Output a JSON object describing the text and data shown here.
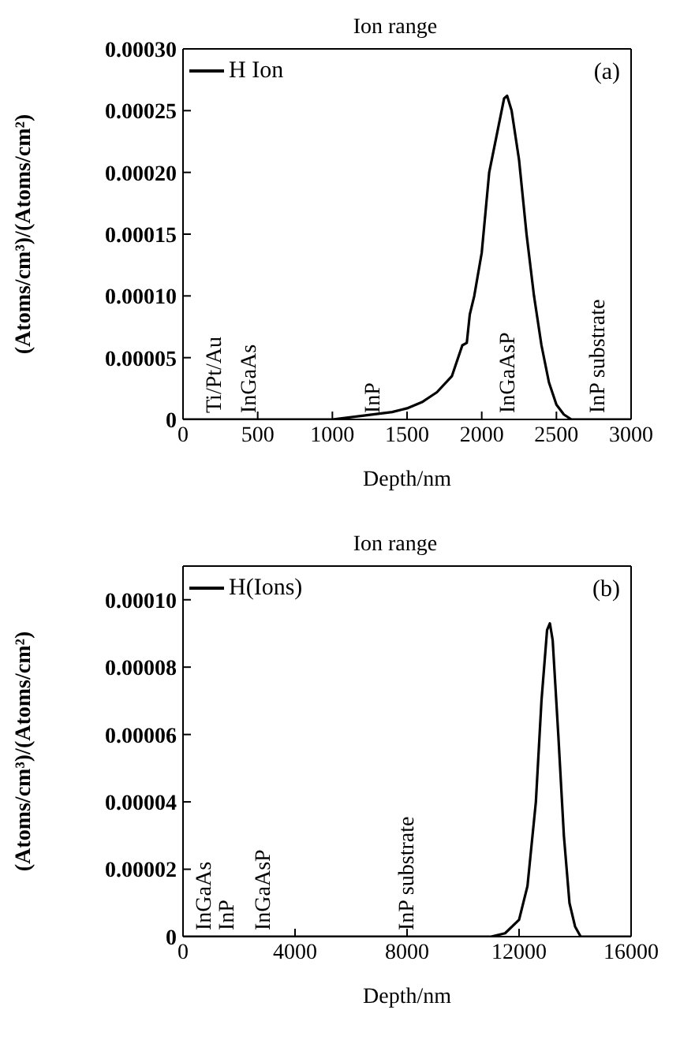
{
  "chart_data": [
    {
      "type": "line",
      "title": "Ion range",
      "xlabel": "Depth/nm",
      "ylabel": "(Atoms/cm³)/(Atoms/cm²)",
      "x": [
        0,
        500,
        1000,
        1200,
        1400,
        1500,
        1600,
        1700,
        1800,
        1870,
        1900,
        1920,
        1950,
        2000,
        2050,
        2100,
        2150,
        2170,
        2200,
        2250,
        2300,
        2350,
        2400,
        2450,
        2500,
        2550,
        2600,
        2700,
        3000
      ],
      "series": [
        {
          "name": "H Ion",
          "color": "#000000",
          "values": [
            0,
            0,
            0,
            3e-06,
            6e-06,
            9e-06,
            1.4e-05,
            2.2e-05,
            3.5e-05,
            6e-05,
            6.2e-05,
            8.5e-05,
            0.0001,
            0.000135,
            0.0002,
            0.00023,
            0.00026,
            0.000262,
            0.00025,
            0.00021,
            0.00015,
            0.0001,
            6e-05,
            3e-05,
            1.2e-05,
            4e-06,
            0,
            0,
            0
          ]
        }
      ],
      "xlim": [
        0,
        3000
      ],
      "xticks": [
        0,
        500,
        1000,
        1500,
        2000,
        2500,
        3000
      ],
      "ylim": [
        0,
        0.0003
      ],
      "yticks": [
        0,
        {
          "value": 5e-05,
          "label": "0.00005"
        },
        {
          "value": 0.0001,
          "label": "0.00010"
        },
        {
          "value": 0.00015,
          "label": "0.00015"
        },
        {
          "value": 0.0002,
          "label": "0.00020"
        },
        {
          "value": 0.00025,
          "label": "0.00025"
        },
        {
          "value": 0.0003,
          "label": "0.00030"
        }
      ],
      "grid": false,
      "legend": "top left",
      "marker": "none",
      "line_style": "solid",
      "annotations": [
        "(a)",
        "Ti/Pt/Au",
        "InGaAs",
        "InP",
        "InGaAsP",
        "InP substrate"
      ]
    },
    {
      "type": "line",
      "title": "Ion range",
      "xlabel": "Depth/nm",
      "ylabel": "(Atoms/cm³)/(Atoms/cm²)",
      "x": [
        0,
        10000,
        11000,
        11500,
        12000,
        12300,
        12600,
        12800,
        13000,
        13100,
        13200,
        13400,
        13600,
        13800,
        14000,
        14200,
        14500,
        16000
      ],
      "series": [
        {
          "name": "H(Ions)",
          "color": "#000000",
          "values": [
            0,
            0,
            0,
            1e-06,
            5e-06,
            1.5e-05,
            4e-05,
            7e-05,
            9.1e-05,
            9.3e-05,
            8.8e-05,
            6e-05,
            3e-05,
            1e-05,
            3e-06,
            0,
            0,
            0
          ]
        }
      ],
      "xlim": [
        0,
        16000
      ],
      "xticks": [
        0,
        4000,
        8000,
        12000,
        16000
      ],
      "ylim": [
        0,
        0.00011
      ],
      "yticks": [
        0,
        {
          "value": 2e-05,
          "label": "0.00002"
        },
        {
          "value": 4e-05,
          "label": "0.00004"
        },
        {
          "value": 6e-05,
          "label": "0.00006"
        },
        {
          "value": 8e-05,
          "label": "0.00008"
        },
        {
          "value": 0.0001,
          "label": "0.00010"
        }
      ],
      "grid": false,
      "legend": "top left",
      "marker": "none",
      "line_style": "solid",
      "annotations": [
        "(b)",
        "InGaAs",
        "InP",
        "InGaAsP",
        "InP substrate"
      ]
    }
  ]
}
